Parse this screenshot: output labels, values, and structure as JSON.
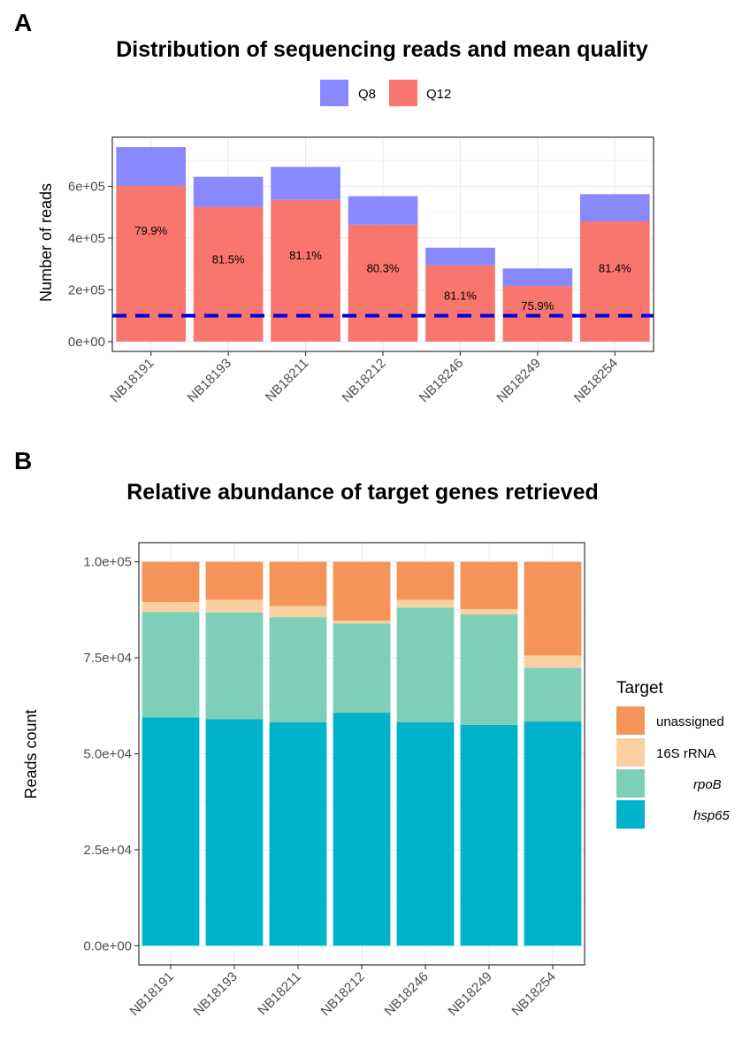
{
  "chart_data": [
    {
      "panel_label": "A",
      "type": "bar",
      "stacked": true,
      "title": "Distribution of sequencing reads and mean quality",
      "xlabel": "",
      "ylabel": "Number of reads",
      "categories": [
        "NB18191",
        "NB18193",
        "NB18211",
        "NB18212",
        "NB18246",
        "NB18249",
        "NB18254"
      ],
      "series": [
        {
          "name": "Q12",
          "color": "#F8766D",
          "values": [
            602000,
            520000,
            548000,
            452000,
            295000,
            215000,
            465000
          ]
        },
        {
          "name": "Q8",
          "color": "#8888FF",
          "values": [
            150000,
            117000,
            127000,
            110000,
            68000,
            68000,
            105000
          ]
        }
      ],
      "legend_order": [
        "Q8",
        "Q12"
      ],
      "legend_colors": {
        "Q8": "#8888FF",
        "Q12": "#F8766D"
      },
      "bar_labels": [
        "79.9%",
        "81.5%",
        "81.1%",
        "80.3%",
        "81.1%",
        "75.9%",
        "81.4%"
      ],
      "bar_label_values": [
        430000,
        320000,
        335000,
        285000,
        180000,
        140000,
        285000
      ],
      "threshold": {
        "value": 100000,
        "color": "#0000DD",
        "style": "dashed"
      },
      "yticks": [
        0,
        200000,
        400000,
        600000
      ],
      "ytick_labels": [
        "0e+00",
        "2e+05",
        "4e+05",
        "6e+05"
      ],
      "ylim": [
        -38000,
        790000
      ],
      "grid": true,
      "legend_position": "top"
    },
    {
      "panel_label": "B",
      "type": "bar",
      "stacked": true,
      "title": "Relative abundance of target genes retrieved",
      "xlabel": "",
      "ylabel": "Reads count",
      "categories": [
        "NB18191",
        "NB18193",
        "NB18211",
        "NB18212",
        "NB18246",
        "NB18249",
        "NB18254"
      ],
      "series": [
        {
          "name": "hsp65",
          "color": "#00B2CA",
          "values": [
            59500,
            59000,
            58200,
            60700,
            58200,
            57500,
            58400
          ]
        },
        {
          "name": "rpoB",
          "color": "#7ECFB8",
          "values": [
            27400,
            27800,
            27400,
            23200,
            29900,
            28800,
            14000
          ]
        },
        {
          "name": "16S rRNA",
          "color": "#FAD0A2",
          "values": [
            2600,
            3300,
            2900,
            800,
            2000,
            1400,
            3200
          ]
        },
        {
          "name": "unassigned",
          "color": "#F59458",
          "values": [
            10500,
            9900,
            11500,
            15300,
            9900,
            12300,
            24400
          ]
        }
      ],
      "legend_title": "Target",
      "legend_order": [
        "unassigned",
        "16S rRNA",
        "rpoB",
        "hsp65"
      ],
      "legend_italic": {
        "unassigned": false,
        "16S rRNA": false,
        "rpoB": true,
        "hsp65": true
      },
      "legend_colors": {
        "unassigned": "#F59458",
        "16S rRNA": "#FAD0A2",
        "rpoB": "#7ECFB8",
        "hsp65": "#00B2CA"
      },
      "yticks": [
        0,
        25000,
        50000,
        75000,
        100000
      ],
      "ytick_labels": [
        "0.0e+00",
        "2.5e+04",
        "5.0e+04",
        "7.5e+04",
        "1.0e+05"
      ],
      "ylim": [
        -5000,
        105000
      ],
      "grid": true,
      "legend_position": "right"
    }
  ]
}
